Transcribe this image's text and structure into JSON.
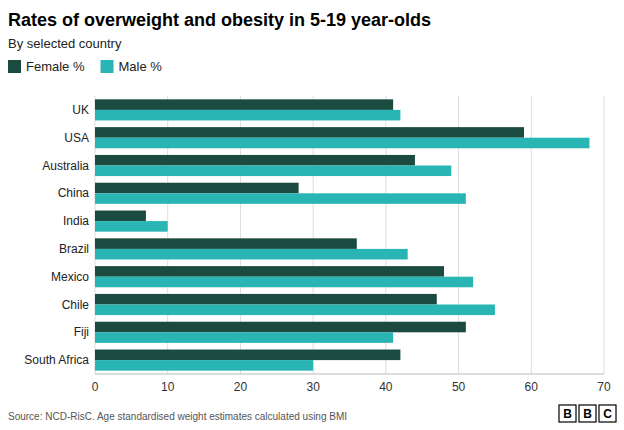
{
  "chart_data": {
    "type": "bar",
    "orientation": "horizontal",
    "title": "Rates of overweight and obesity in 5-19 year-olds",
    "subtitle": "By selected country",
    "categories": [
      "UK",
      "USA",
      "Australia",
      "China",
      "India",
      "Brazil",
      "Mexico",
      "Chile",
      "Fiji",
      "South Africa"
    ],
    "series": [
      {
        "name": "Female %",
        "color": "#1a4a40",
        "values": [
          41,
          59,
          44,
          28,
          7,
          36,
          48,
          47,
          51,
          42
        ]
      },
      {
        "name": "Male %",
        "color": "#2ab5b5",
        "values": [
          42,
          68,
          49,
          51,
          10,
          43,
          52,
          55,
          41,
          30
        ]
      }
    ],
    "xlim": [
      0,
      70
    ],
    "xticks": [
      0,
      10,
      20,
      30,
      40,
      50,
      60,
      70
    ],
    "grid": true,
    "legend": "upper left",
    "source": "Source: NCD-RisC. Age standardised weight estimates calculated using BMI",
    "logo": "BBC"
  }
}
